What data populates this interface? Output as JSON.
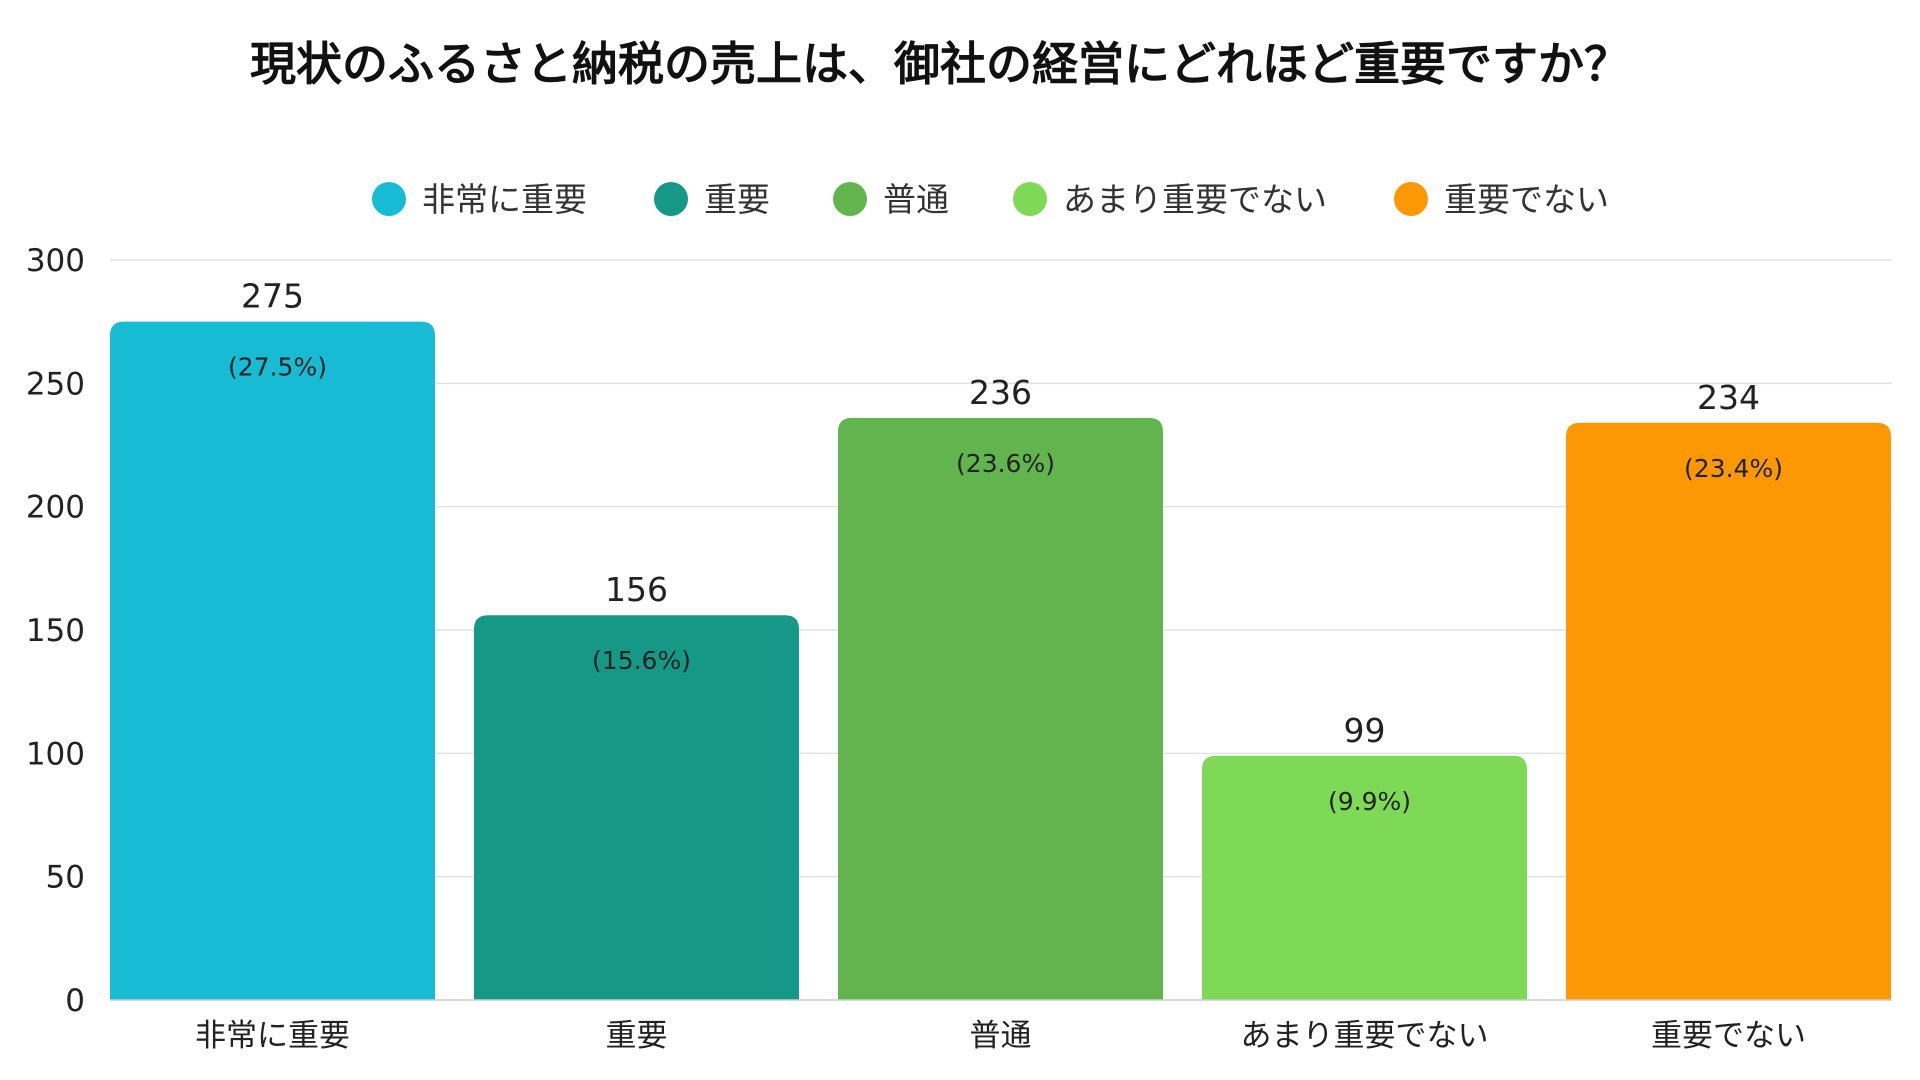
{
  "chart_data": {
    "type": "bar",
    "title": "現状のふるさと納税の売上は、御社の経営にどれほど重要ですか？",
    "categories": [
      "非常に重要",
      "重要",
      "普通",
      "あまり重要でない",
      "重要でない"
    ],
    "values": [
      275,
      156,
      236,
      99,
      234
    ],
    "percent_labels": [
      "(27.5%)",
      "(15.6%)",
      "(23.6%)",
      "(9.9%)",
      "(23.4%)"
    ],
    "colors": [
      "#17bcd4",
      "#159886",
      "#62b54e",
      "#7ed957",
      "#fb9804"
    ],
    "legend": [
      "非常に重要",
      "重要",
      "普通",
      "あまり重要でない",
      "重要でない"
    ],
    "legend_placement": "top",
    "ylim": [
      0,
      300
    ],
    "yticks": [
      0,
      50,
      100,
      150,
      200,
      250,
      300
    ],
    "grid": true,
    "xlabel": "",
    "ylabel": ""
  }
}
